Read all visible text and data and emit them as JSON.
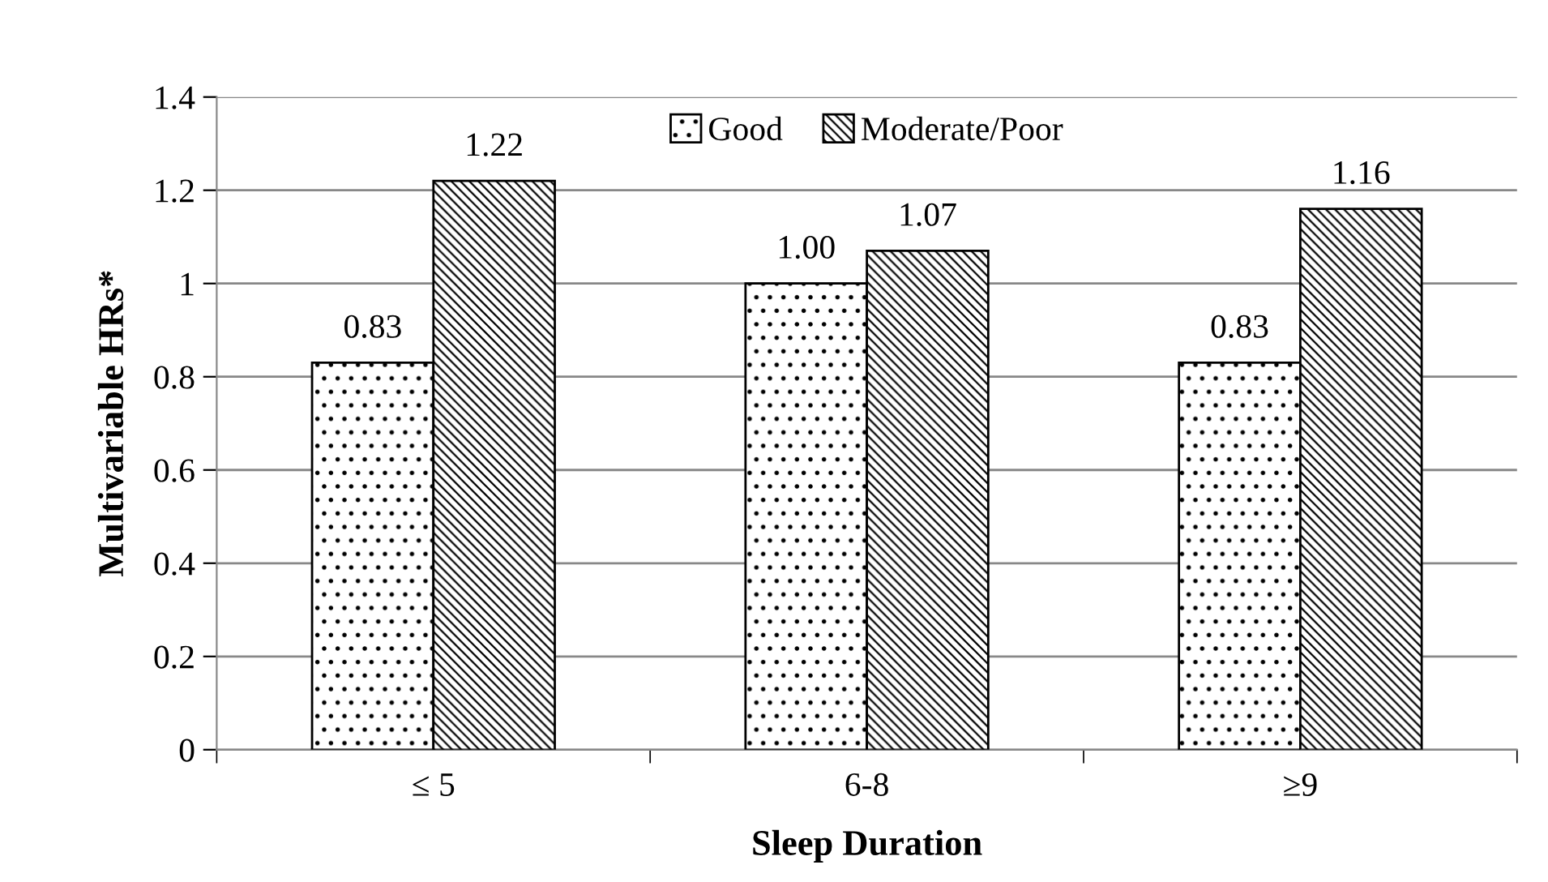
{
  "chart_data": {
    "type": "bar",
    "xlabel": "Sleep Duration",
    "ylabel": "Multivariable HRs*",
    "categories": [
      "≤ 5",
      "6-8",
      "≥9"
    ],
    "series": [
      {
        "name": "Good",
        "color": "#000000",
        "values": [
          0.83,
          1.0,
          0.83
        ],
        "value_labels": [
          "0.83",
          "1.00",
          "0.83"
        ]
      },
      {
        "name": "Moderate/Poor",
        "color": "#000000",
        "values": [
          1.22,
          1.07,
          1.16
        ],
        "value_labels": [
          "1.22",
          "1.07",
          "1.16"
        ]
      }
    ],
    "ylim": [
      0,
      1.4
    ],
    "yticks": [
      0,
      0.2,
      0.4,
      0.6,
      0.8,
      1,
      1.2,
      1.4
    ],
    "grid": "y",
    "legend": "top"
  }
}
